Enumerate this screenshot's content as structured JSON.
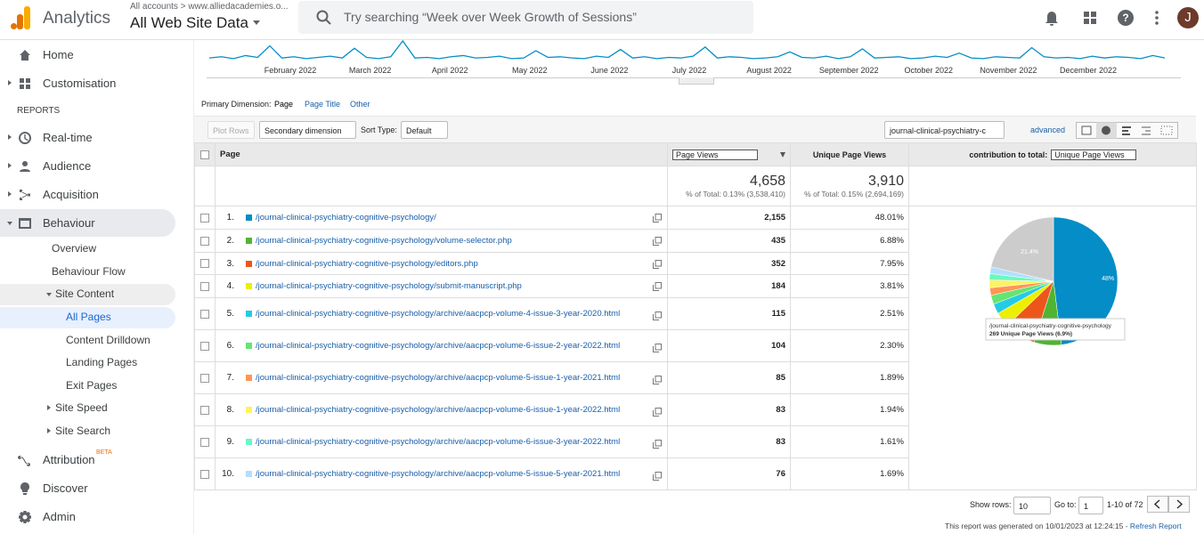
{
  "header": {
    "product": "Analytics",
    "breadcrumb": "All accounts > www.alliedacademies.o...",
    "property": "All Web Site Data",
    "search_placeholder": "Try searching “Week over Week Growth of Sessions”",
    "avatar": "J"
  },
  "sidebar": {
    "items": [
      "Home",
      "Customisation",
      "REPORTS",
      "Real-time",
      "Audience",
      "Acquisition",
      "Behaviour",
      "Overview",
      "Behaviour Flow",
      "Site Content",
      "All Pages",
      "Content Drilldown",
      "Landing Pages",
      "Exit Pages",
      "Site Speed",
      "Site Search",
      "Attribution",
      "Discover",
      "Admin"
    ],
    "beta": "BETA"
  },
  "timeline": {
    "months": [
      "February 2022",
      "March 2022",
      "April 2022",
      "May 2022",
      "June 2022",
      "July 2022",
      "August 2022",
      "September 2022",
      "October 2022",
      "November 2022",
      "December 2022"
    ],
    "values": [
      10,
      12,
      9,
      14,
      11,
      30,
      10,
      12,
      9,
      11,
      13,
      10,
      26,
      11,
      9,
      12,
      38,
      10,
      11,
      9,
      12,
      14,
      10,
      11,
      13,
      9,
      10,
      22,
      11,
      12,
      10,
      9,
      13,
      11,
      24,
      10,
      12,
      9,
      11,
      10,
      13,
      28,
      10,
      12,
      11,
      9,
      10,
      12,
      20,
      11,
      10,
      13,
      9,
      12,
      25,
      10,
      11,
      12,
      9,
      10,
      13,
      11,
      18,
      10,
      9,
      12,
      11,
      10,
      27,
      12,
      10,
      11,
      9,
      13,
      10,
      12,
      11,
      9,
      14,
      10
    ],
    "color": "#058dc7"
  },
  "controls": {
    "primary_dimension": "Primary Dimension:",
    "dimensions": [
      "Page",
      "Page Title",
      "Other"
    ],
    "plot_rows": "Plot Rows",
    "secondary_dimension": "Secondary dimension",
    "sort_type": "Sort Type:",
    "sort_value": "Default",
    "filter": "journal-clinical-psychiatry-c",
    "advanced": "advanced"
  },
  "table": {
    "columns": [
      "Page",
      "Page Views",
      "Unique Page Views",
      "contribution to total:"
    ],
    "contribution_metric": "Unique Page Views",
    "totals": {
      "page_views": "4,658",
      "page_views_pct": "% of Total: 0.13% (3,538,410)",
      "unique": "3,910",
      "unique_pct": "% of Total: 0.15% (2,694,169)"
    },
    "rows": [
      {
        "rank": "1.",
        "page": "/journal-clinical-psychiatry-cognitive-psychology/",
        "views": "2,155",
        "share": "48.01%",
        "color": "#058dc7"
      },
      {
        "rank": "2.",
        "page": "/journal-clinical-psychiatry-cognitive-psychology/volume-selector.php",
        "views": "435",
        "share": "6.88%",
        "color": "#50b432"
      },
      {
        "rank": "3.",
        "page": "/journal-clinical-psychiatry-cognitive-psychology/editors.php",
        "views": "352",
        "share": "7.95%",
        "color": "#ed561b"
      },
      {
        "rank": "4.",
        "page": "/journal-clinical-psychiatry-cognitive-psychology/submit-manuscript.php",
        "views": "184",
        "share": "3.81%",
        "color": "#edef00"
      },
      {
        "rank": "5.",
        "page": "/journal-clinical-psychiatry-cognitive-psychology/archive/aacpcp-volume-4-issue-3-year-2020.html",
        "views": "115",
        "share": "2.51%",
        "color": "#24cbe5"
      },
      {
        "rank": "6.",
        "page": "/journal-clinical-psychiatry-cognitive-psychology/archive/aacpcp-volume-6-issue-2-year-2022.html",
        "views": "104",
        "share": "2.30%",
        "color": "#64e572"
      },
      {
        "rank": "7.",
        "page": "/journal-clinical-psychiatry-cognitive-psychology/archive/aacpcp-volume-5-issue-1-year-2021.html",
        "views": "85",
        "share": "1.89%",
        "color": "#ff9655"
      },
      {
        "rank": "8.",
        "page": "/journal-clinical-psychiatry-cognitive-psychology/archive/aacpcp-volume-6-issue-1-year-2022.html",
        "views": "83",
        "share": "1.94%",
        "color": "#fff263"
      },
      {
        "rank": "9.",
        "page": "/journal-clinical-psychiatry-cognitive-psychology/archive/aacpcp-volume-6-issue-3-year-2022.html",
        "views": "83",
        "share": "1.61%",
        "color": "#6af9c4"
      },
      {
        "rank": "10.",
        "page": "/journal-clinical-psychiatry-cognitive-psychology/archive/aacpcp-volume-5-issue-5-year-2021.html",
        "views": "76",
        "share": "1.69%",
        "color": "#b2deff"
      }
    ]
  },
  "pie": {
    "type": "pie",
    "values": [
      48.01,
      6.88,
      7.95,
      3.81,
      2.51,
      2.3,
      1.89,
      1.94,
      1.61,
      1.69,
      21.4
    ],
    "colors": [
      "#058dc7",
      "#50b432",
      "#ed561b",
      "#edef00",
      "#24cbe5",
      "#64e572",
      "#ff9655",
      "#fff263",
      "#6af9c4",
      "#b2deff",
      "#cccccc"
    ],
    "value_labels": [
      "48%",
      null,
      null,
      null,
      null,
      null,
      null,
      null,
      null,
      null,
      "21.4%"
    ],
    "tooltip": [
      "/journal-clinical-psychiatry-cognitive-psychology",
      "269 Unique Page Views (6.9%)"
    ]
  },
  "footer": {
    "show_rows": "Show rows:",
    "rows_value": "10",
    "go_to": "Go to:",
    "page_value": "1",
    "range": "1-10 of 72",
    "generated": "This report was generated on 10/01/2023 at 12:24:15 - ",
    "refresh": "Refresh Report"
  }
}
